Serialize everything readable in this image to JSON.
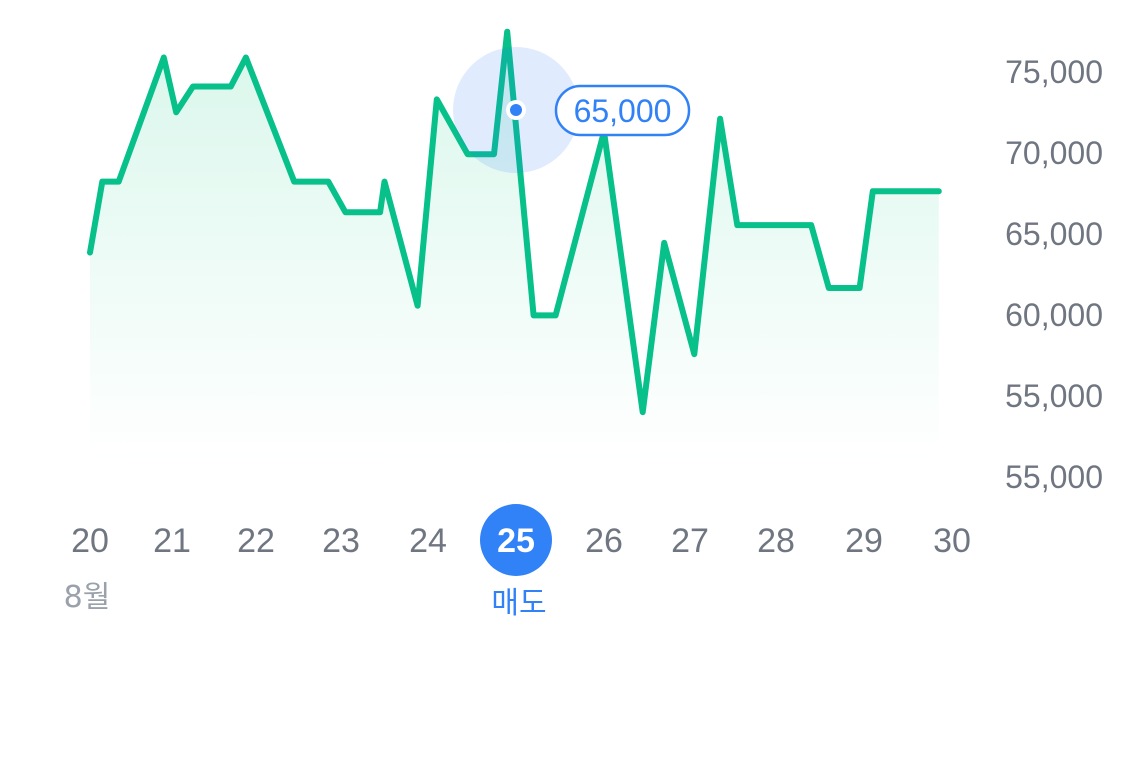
{
  "chart_data": {
    "type": "line",
    "x_categories": [
      "20",
      "21",
      "22",
      "23",
      "24",
      "25",
      "26",
      "27",
      "28",
      "29",
      "30"
    ],
    "selected_x": "25",
    "month_label": "8월",
    "selected_action_label": "매도",
    "y_tick_labels": [
      "75,000",
      "70,000",
      "65,000",
      "60,000",
      "55,000",
      "55,000"
    ],
    "y_axis_position": "right",
    "grid": false,
    "series": [
      {
        "x": [
          20.0,
          20.15,
          20.35,
          20.9,
          21.05,
          21.25,
          21.7,
          21.88,
          22.45,
          22.85,
          23.05,
          23.45,
          23.5,
          23.88,
          24.1,
          24.45,
          24.75,
          24.9,
          25.2,
          25.45,
          26.0,
          26.45,
          26.7,
          27.05,
          27.35,
          27.55,
          28.4,
          28.6,
          28.95,
          29.1,
          29.85
        ],
        "values": [
          63800,
          68200,
          68200,
          75900,
          72500,
          74100,
          74100,
          75900,
          68200,
          68200,
          66300,
          66300,
          68200,
          60500,
          73300,
          69900,
          69900,
          77500,
          59900,
          59900,
          71300,
          53900,
          64400,
          57500,
          72100,
          65500,
          65500,
          61600,
          61600,
          67600,
          67600
        ],
        "color": "#07c08a"
      }
    ],
    "highlight": {
      "x": "25",
      "label": "65,000",
      "marker_color": "#3182f6"
    },
    "colors": {
      "line": "#07c08a",
      "fill": "#e3f8f0",
      "selected": "#3182f6",
      "tick_text": "#6f7681",
      "month_text": "#9aa1ab"
    }
  }
}
